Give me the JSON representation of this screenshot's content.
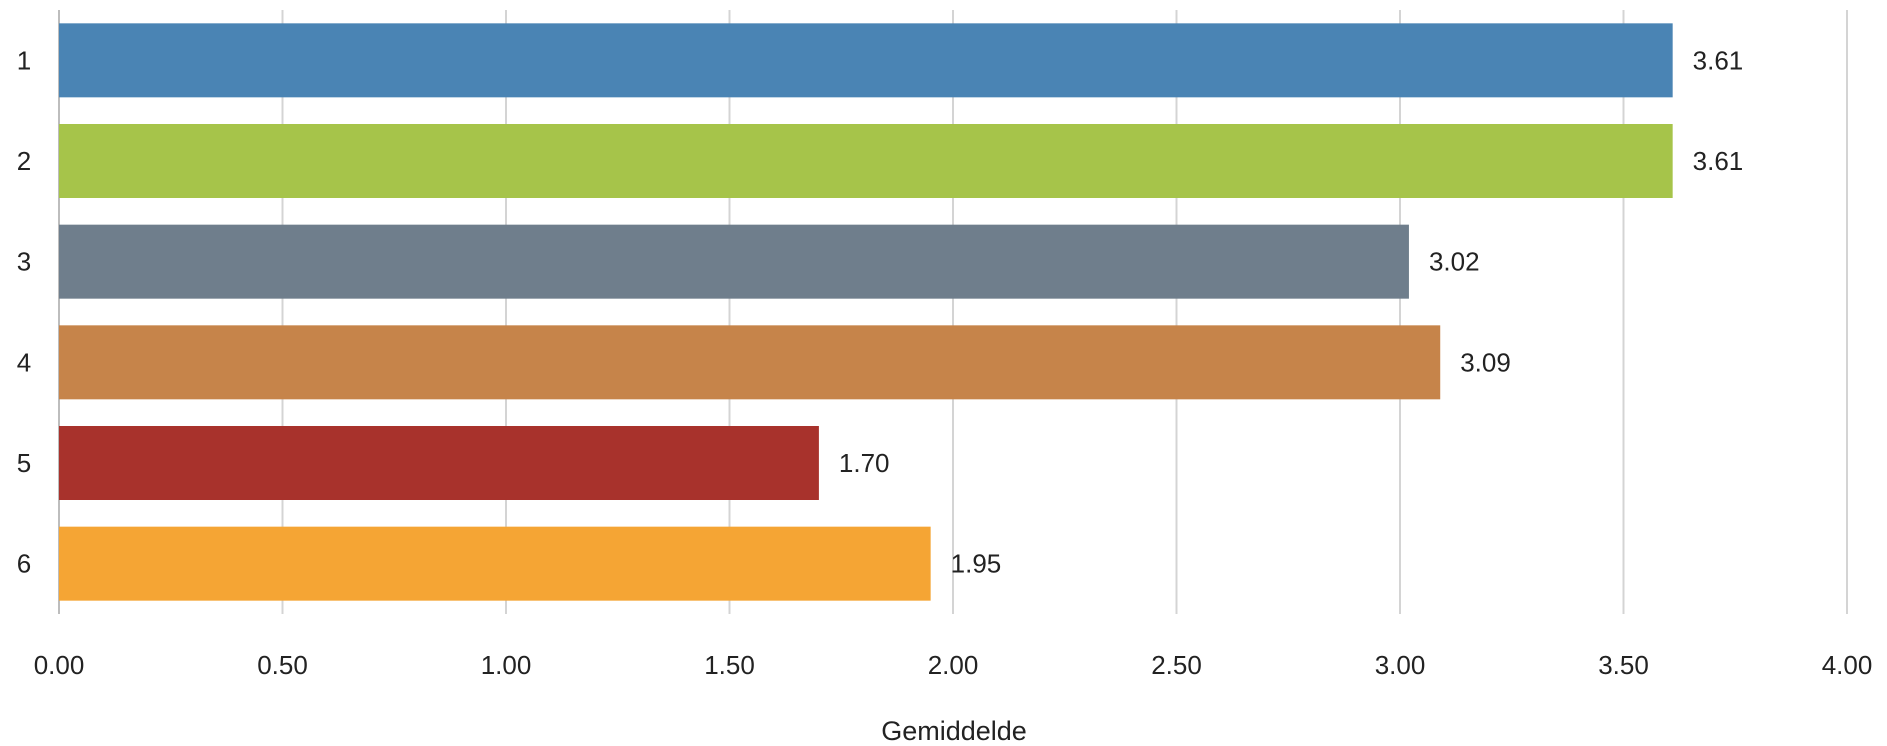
{
  "chart_data": {
    "type": "bar",
    "orientation": "horizontal",
    "categories": [
      "1",
      "2",
      "3",
      "4",
      "5",
      "6"
    ],
    "values": [
      3.61,
      3.61,
      3.02,
      3.09,
      1.7,
      1.95
    ],
    "value_labels": [
      "3.61",
      "3.61",
      "3.02",
      "3.09",
      "1.70",
      "1.95"
    ],
    "colors": [
      "#4a84b4",
      "#a6c44a",
      "#6f7e8c",
      "#c6844a",
      "#a8322c",
      "#f5a534"
    ],
    "title": "",
    "xlabel": "Gemiddelde",
    "ylabel": "",
    "xlim": [
      0,
      4
    ],
    "x_ticks": [
      0,
      0.5,
      1.0,
      1.5,
      2.0,
      2.5,
      3.0,
      3.5,
      4.0
    ],
    "x_tick_labels": [
      "0.00",
      "0.50",
      "1.00",
      "1.50",
      "2.00",
      "2.50",
      "3.00",
      "3.50",
      "4.00"
    ],
    "grid": "vertical",
    "legend": "none"
  }
}
